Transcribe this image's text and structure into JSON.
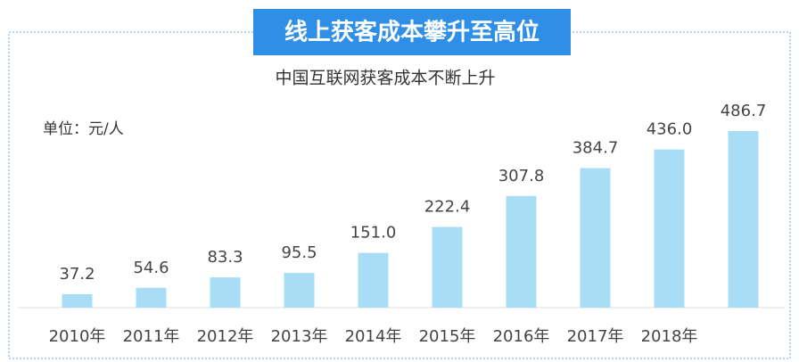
{
  "chart_data": {
    "type": "bar",
    "title": "线上获客成本攀升至高位",
    "subtitle": "中国互联网获客成本不断上升",
    "unit_label": "单位：元/人",
    "categories": [
      "2010年",
      "2011年",
      "2012年",
      "2013年",
      "2014年",
      "2015年",
      "2016年",
      "2017年",
      "2018年",
      null
    ],
    "values": [
      37.2,
      54.6,
      83.3,
      95.5,
      151.0,
      222.4,
      307.8,
      384.7,
      436.0,
      486.7
    ],
    "value_labels": [
      "37.2",
      "54.6",
      "83.3",
      "95.5",
      "151.0",
      "222.4",
      "307.8",
      "384.7",
      "436.0",
      "486.7"
    ],
    "color": "#a9dcf5"
  }
}
